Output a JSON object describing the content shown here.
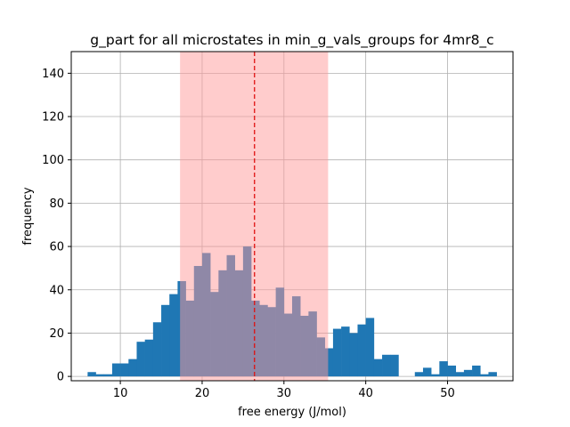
{
  "chart_data": {
    "type": "bar",
    "title": "g_part for all microstates in min_g_vals_groups for 4mr8_c",
    "xlabel": "free energy (J/mol)",
    "ylabel": "frequency",
    "xlim": [
      4.0,
      58.0
    ],
    "ylim": [
      -2,
      150
    ],
    "xticks": [
      10,
      20,
      30,
      40,
      50
    ],
    "yticks": [
      0,
      20,
      40,
      60,
      80,
      100,
      120,
      140
    ],
    "grid": true,
    "bin_start": 6.0,
    "bin_width": 1.0,
    "values": [
      2,
      1,
      1,
      6,
      6,
      8,
      16,
      17,
      25,
      33,
      38,
      44,
      35,
      51,
      57,
      39,
      49,
      56,
      49,
      60,
      35,
      33,
      32,
      41,
      29,
      37,
      28,
      30,
      18,
      13,
      22,
      23,
      20,
      24,
      27,
      8,
      10,
      10,
      0,
      0,
      2,
      4,
      1,
      7,
      5,
      2,
      3,
      5,
      1,
      2
    ],
    "span": {
      "x0": 17.3,
      "x1": 35.4,
      "color": "#ff9999"
    },
    "mean_line": {
      "x": 26.4,
      "color": "#e01010"
    },
    "bar_color": "#1f77b4"
  }
}
